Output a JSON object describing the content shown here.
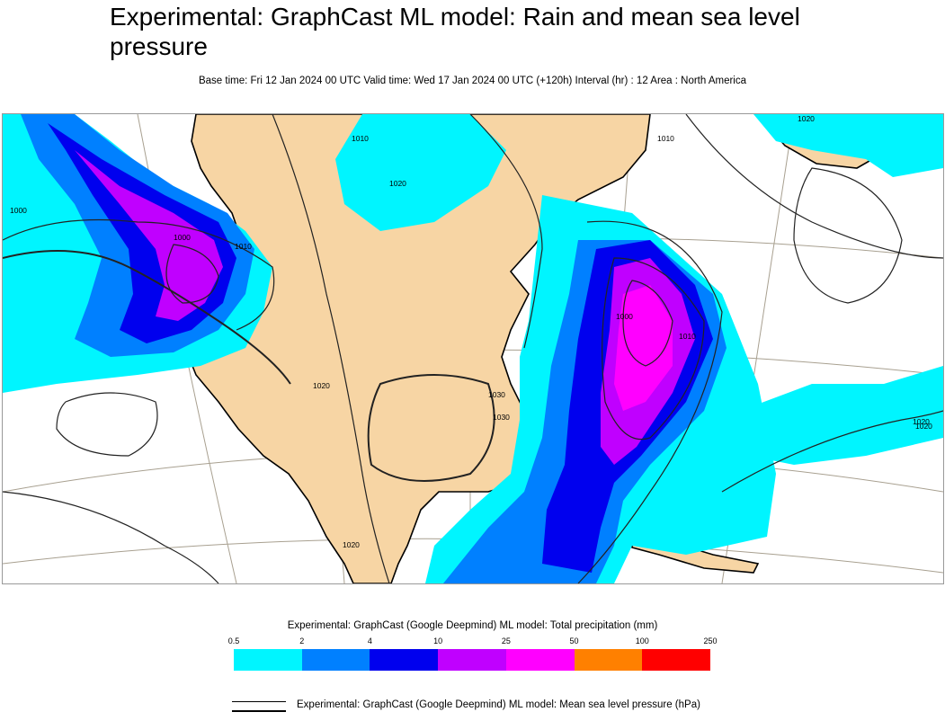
{
  "header": {
    "title": "Experimental: GraphCast ML model: Rain and mean sea level pressure",
    "subtitle": "Base time: Fri 12 Jan 2024 00 UTC Valid time: Wed 17 Jan 2024 00 UTC (+120h) Interval (hr) : 12 Area : North America"
  },
  "map": {
    "isobar_labels": [
      "1000",
      "1010",
      "1020",
      "1030",
      "1000",
      "1010",
      "1020",
      "1020",
      "1020",
      "1030",
      "1000",
      "1010",
      "1020",
      "1010",
      "1020"
    ],
    "colors": {
      "land": "#f7d5a4",
      "ocean": "#ffffff",
      "graticule": "#a8a090",
      "coast": "#000000",
      "isobar": "#222222"
    }
  },
  "legend": {
    "precip_title": "Experimental: GraphCast (Google Deepmind) ML model: Total precipitation (mm)",
    "ticks": [
      "0.5",
      "2",
      "4",
      "10",
      "25",
      "50",
      "100",
      "250"
    ],
    "colors": [
      "#00f5ff",
      "#0080ff",
      "#0000ee",
      "#c000ff",
      "#ff00ff",
      "#ff8000",
      "#ff0000"
    ],
    "msl_title": "Experimental: GraphCast (Google Deepmind) ML model: Mean sea level pressure (hPa)"
  }
}
